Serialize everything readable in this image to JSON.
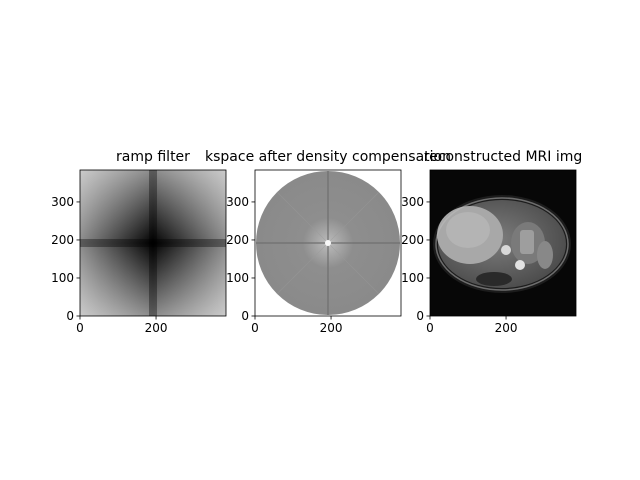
{
  "chart_data": [
    {
      "type": "heatmap",
      "title": "ramp filter",
      "colormap": "gray",
      "image_size": [
        384,
        384
      ],
      "xlim": [
        0,
        384
      ],
      "ylim": [
        384,
        0
      ],
      "xticks": [
        0,
        200
      ],
      "yticks": [
        0,
        100,
        200,
        300
      ],
      "xticklabels": [
        "0",
        "200"
      ],
      "yticklabels": [
        "0",
        "100",
        "200",
        "300"
      ],
      "content": "ramp"
    },
    {
      "type": "heatmap",
      "title": "kspace after density compensation",
      "colormap": "gray",
      "image_size": [
        384,
        384
      ],
      "xlim": [
        0,
        384
      ],
      "ylim": [
        384,
        0
      ],
      "xticks": [
        0,
        200
      ],
      "yticks": [
        0,
        100,
        200,
        300
      ],
      "xticklabels": [
        "0",
        "200"
      ],
      "yticklabels": [
        "0",
        "100",
        "200",
        "300"
      ],
      "content": "kspace"
    },
    {
      "type": "heatmap",
      "title": "reconstructed MRI img",
      "colormap": "gray",
      "image_size": [
        384,
        384
      ],
      "xlim": [
        0,
        384
      ],
      "ylim": [
        384,
        0
      ],
      "xticks": [
        0,
        200
      ],
      "yticks": [
        0,
        100,
        200,
        300
      ],
      "xticklabels": [
        "0",
        "200"
      ],
      "yticklabels": [
        "0",
        "100",
        "200",
        "300"
      ],
      "content": "mri"
    }
  ]
}
